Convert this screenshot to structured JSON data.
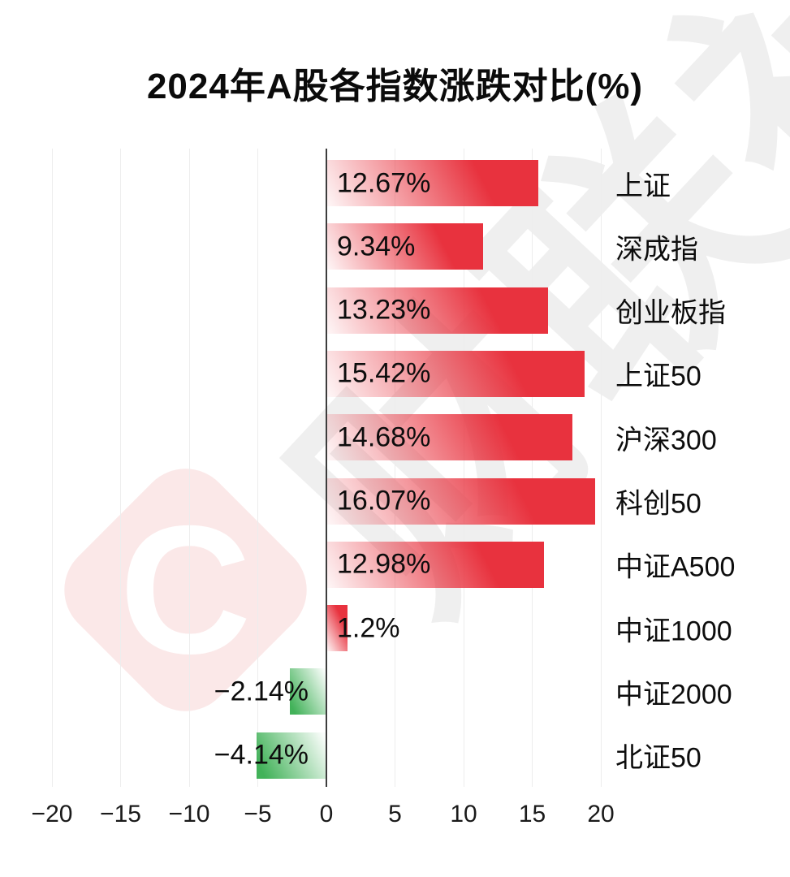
{
  "watermark": {
    "logo_letter": "C",
    "brand_text": "财联社",
    "pink": "#fbe8e8",
    "gray": "#efefef"
  },
  "chart_data": {
    "type": "bar",
    "orientation": "horizontal",
    "title": "2024年A股各指数涨跌对比(%)",
    "categories": [
      "上证",
      "深成指",
      "创业板指",
      "上证50",
      "沪深300",
      "科创50",
      "中证A500",
      "中证1000",
      "中证2000",
      "北证50"
    ],
    "values": [
      12.67,
      9.34,
      13.23,
      15.42,
      14.68,
      16.07,
      12.98,
      1.2,
      -2.14,
      -4.14
    ],
    "value_labels": [
      "12.67%",
      "9.34%",
      "13.23%",
      "15.42%",
      "14.68%",
      "16.07%",
      "12.98%",
      "1.2%",
      "−2.14%",
      "−4.14%"
    ],
    "x_ticks": [
      -20,
      -15,
      -10,
      -5,
      0,
      5,
      10,
      15,
      20
    ],
    "x_tick_labels": [
      "−20",
      "−15",
      "−10",
      "−5",
      "0",
      "5",
      "10",
      "15",
      "20"
    ],
    "xlim": [
      -22,
      22
    ],
    "grid": "vertical-light",
    "legend": "none",
    "positive_color": "#e8323e",
    "negative_color": "#42b259",
    "label_color": "#0d0d0d",
    "axis_line_color": "#3d3d3d",
    "gridline_color": "#ededed"
  }
}
